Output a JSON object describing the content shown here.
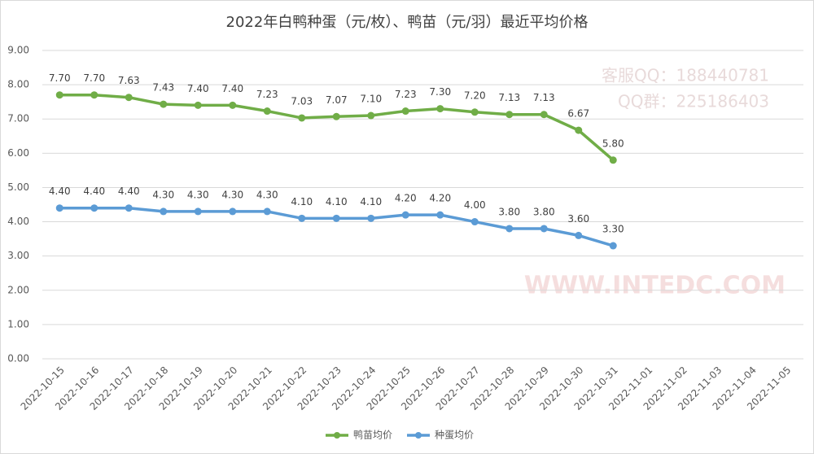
{
  "chart_data": {
    "type": "line",
    "title": "2022年白鸭种蛋（元/枚）、鸭苗（元/羽）最近平均价格",
    "categories": [
      "2022-10-15",
      "2022-10-16",
      "2022-10-17",
      "2022-10-18",
      "2022-10-19",
      "2022-10-20",
      "2022-10-21",
      "2022-10-22",
      "2022-10-23",
      "2022-10-24",
      "2022-10-25",
      "2022-10-26",
      "2022-10-27",
      "2022-10-28",
      "2022-10-29",
      "2022-10-30",
      "2022-10-31",
      "2022-11-01",
      "2022-11-02",
      "2022-11-03",
      "2022-11-04",
      "2022-11-05"
    ],
    "series": [
      {
        "name": "鸭苗均价",
        "color": "#70ad47",
        "values": [
          7.7,
          7.7,
          7.63,
          7.43,
          7.4,
          7.4,
          7.23,
          7.03,
          7.07,
          7.1,
          7.23,
          7.3,
          7.2,
          7.13,
          7.13,
          6.67,
          5.8,
          null,
          null,
          null,
          null,
          null
        ],
        "value_labels": [
          "7.70",
          "7.70",
          "7.63",
          "7.43",
          "7.40",
          "7.40",
          "7.23",
          "7.03",
          "7.07",
          "7.10",
          "7.23",
          "7.30",
          "7.20",
          "7.13",
          "7.13",
          "6.67",
          "5.80",
          null,
          null,
          null,
          null,
          null
        ]
      },
      {
        "name": "种蛋均价",
        "color": "#5b9bd5",
        "values": [
          4.4,
          4.4,
          4.4,
          4.3,
          4.3,
          4.3,
          4.3,
          4.1,
          4.1,
          4.1,
          4.2,
          4.2,
          4.0,
          3.8,
          3.8,
          3.6,
          3.3,
          null,
          null,
          null,
          null,
          null
        ],
        "value_labels": [
          "4.40",
          "4.40",
          "4.40",
          "4.30",
          "4.30",
          "4.30",
          "4.30",
          "4.10",
          "4.10",
          "4.10",
          "4.20",
          "4.20",
          "4.00",
          "3.80",
          "3.80",
          "3.60",
          "3.30",
          null,
          null,
          null,
          null,
          null
        ]
      }
    ],
    "ylim": [
      0,
      9
    ],
    "yticks": [
      {
        "value": 0,
        "label": "0.00"
      },
      {
        "value": 1,
        "label": "1.00"
      },
      {
        "value": 2,
        "label": "2.00"
      },
      {
        "value": 3,
        "label": "3.00"
      },
      {
        "value": 4,
        "label": "4.00"
      },
      {
        "value": 5,
        "label": "5.00"
      },
      {
        "value": 6,
        "label": "6.00"
      },
      {
        "value": 7,
        "label": "7.00"
      },
      {
        "value": 8,
        "label": "8.00"
      },
      {
        "value": 9,
        "label": "9.00"
      }
    ],
    "grid": true,
    "legend": "bottom",
    "annotations": [
      "客服QQ：188440781",
      "QQ群：225186403",
      "WWW.INTEDC.COM"
    ]
  }
}
